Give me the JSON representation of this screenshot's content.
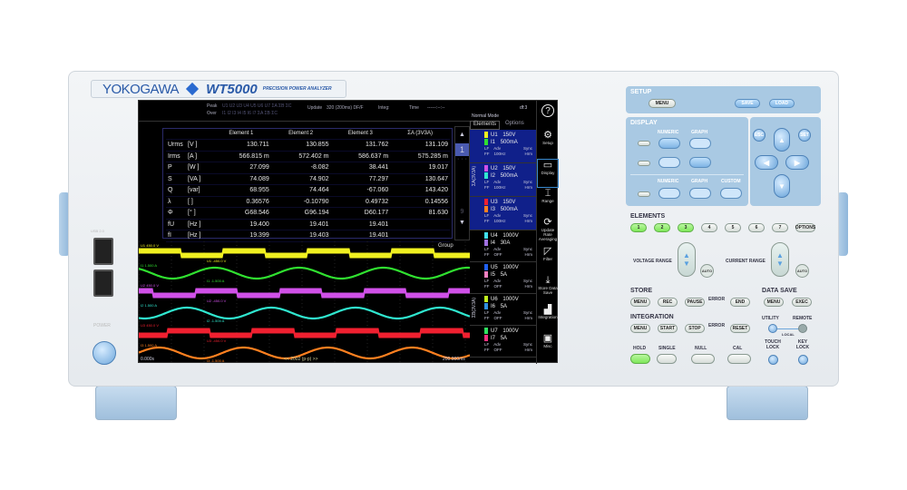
{
  "brand": {
    "maker": "YOKOGAWA",
    "model": "WT5000",
    "tagline": "PRECISION POWER ANALYZER"
  },
  "front": {
    "usb_label": "USB 2.0",
    "power_label": "POWER"
  },
  "status": {
    "peak_label": "Peak",
    "over_label": "Over",
    "peak_list": "U1 U2 U3 U4 U5 U6 U7 ΣA ΣB ΣC",
    "over_list": "I1 I2 I3 I4 I5 I6 I7 ΣA ΣB ΣC",
    "update_label": "Update",
    "update_value": "320 (200ms) DF/F",
    "integ_label": "Integ:",
    "time_label": "Time",
    "time_value": "------:--:--",
    "mode": "Normal Mode",
    "page_info": "df:3"
  },
  "table": {
    "headers": [
      "",
      "",
      "Element 1",
      "Element 2",
      "Element 3",
      "ΣA (3V3A)"
    ],
    "rows": [
      [
        "Urms",
        "[V  ]",
        "130.711",
        "130.855",
        "131.762",
        "131.109"
      ],
      [
        "Irms",
        "[A  ]",
        "566.815 m",
        "572.402 m",
        "586.637 m",
        "575.285 m"
      ],
      [
        "P",
        "[W  ]",
        "27.099",
        "-8.082",
        "38.441",
        "19.017"
      ],
      [
        "S",
        "[VA ]",
        "74.089",
        "74.902",
        "77.297",
        "130.647"
      ],
      [
        "Q",
        "[var]",
        "68.955",
        "74.464",
        "-67.060",
        "143.420"
      ],
      [
        "λ",
        "[   ]",
        "0.36576",
        "-0.10790",
        "0.49732",
        "0.14556"
      ],
      [
        "Φ",
        "[°  ]",
        "G68.546",
        "G96.194",
        "D60.177",
        "81.630"
      ],
      [
        "fU",
        "[Hz ]",
        "19.400",
        "19.401",
        "19.401",
        ""
      ],
      [
        "fI",
        "[Hz ]",
        "19.399",
        "19.403",
        "19.401",
        ""
      ]
    ]
  },
  "scroll": {
    "up": "▲",
    "page": "1",
    "last": "9",
    "down": "▼"
  },
  "panel_tabs": [
    "Elements",
    "Options"
  ],
  "wiring_labels": [
    "ΣA(3V3A)",
    "ΣB(3V3A)"
  ],
  "elements": [
    {
      "u": "U1",
      "ur": "150V",
      "i": "I1",
      "ir": "500mA",
      "uc": "#f0f020",
      "ic": "#30e030",
      "lf": "Adv",
      "ff": "100Hz",
      "sync": "Sync",
      "hrm": "Hrm",
      "sel": true
    },
    {
      "u": "U2",
      "ur": "150V",
      "i": "I2",
      "ir": "500mA",
      "uc": "#d050e8",
      "ic": "#30e8d0",
      "lf": "Adv",
      "ff": "100Hz",
      "sync": "Sync",
      "hrm": "Hrm",
      "sel": true
    },
    {
      "u": "U3",
      "ur": "150V",
      "i": "I3",
      "ir": "500mA",
      "uc": "#f02030",
      "ic": "#ff8020",
      "lf": "Adv",
      "ff": "100Hz",
      "sync": "Sync",
      "hrm": "Hrm",
      "sel": true
    },
    {
      "u": "U4",
      "ur": "1000V",
      "i": "I4",
      "ir": "30A",
      "uc": "#40e0f0",
      "ic": "#a070e0",
      "lf": "Adv",
      "ff": "OFF",
      "sync": "Sync",
      "hrm": "Hrm",
      "sel": false
    },
    {
      "u": "U5",
      "ur": "1000V",
      "i": "I5",
      "ir": "5A",
      "uc": "#2060f0",
      "ic": "#f080c0",
      "lf": "Adv",
      "ff": "OFF",
      "sync": "Sync",
      "hrm": "Hrm",
      "sel": false
    },
    {
      "u": "U6",
      "ur": "1000V",
      "i": "I6",
      "ir": "5A",
      "uc": "#c0f020",
      "ic": "#3090e0",
      "lf": "Adv",
      "ff": "OFF",
      "sync": "Sync",
      "hrm": "Hrm",
      "sel": false
    },
    {
      "u": "U7",
      "ur": "1000V",
      "i": "I7",
      "ir": "5A",
      "uc": "#30e060",
      "ic": "#f03080",
      "lf": "Adv",
      "ff": "OFF",
      "sync": "Sync",
      "hrm": "Hrm",
      "sel": false
    }
  ],
  "side_menu": [
    {
      "icon": "help-icon",
      "label": "?"
    },
    {
      "icon": "gear-icon",
      "label": "Setup"
    },
    {
      "icon": "display-icon",
      "label": "Display"
    },
    {
      "icon": "range-icon",
      "label": "Range"
    },
    {
      "icon": "refresh-icon",
      "label": "Update Rate Averaging"
    },
    {
      "icon": "filter-icon",
      "label": "Filter"
    },
    {
      "icon": "download-icon",
      "label": "Store Data Save"
    },
    {
      "icon": "chart-icon",
      "label": "Integration"
    },
    {
      "icon": "toolbox-icon",
      "label": "Misc"
    }
  ],
  "waves": {
    "group_label": "Group",
    "traces": [
      {
        "name": "U1",
        "type": "square",
        "color": "#f0f020",
        "top": "450.0 V",
        "bottom": "-450.0 V",
        "phase": 0
      },
      {
        "name": "I1",
        "type": "sine",
        "color": "#30e030",
        "top": "1.500 A",
        "bottom": "-1.500 A",
        "phase": 0.1
      },
      {
        "name": "U2",
        "type": "square",
        "color": "#d050e8",
        "top": "450.0 V",
        "bottom": "-450.0 V",
        "phase": 0.33
      },
      {
        "name": "I2",
        "type": "sine",
        "color": "#30e8d0",
        "top": "1.500 A",
        "bottom": "-1.500 A",
        "phase": 0.43
      },
      {
        "name": "U3",
        "type": "square",
        "color": "#f02030",
        "top": "450.0 V",
        "bottom": "-450.0 V",
        "phase": 0.66
      },
      {
        "name": "I3",
        "type": "sine",
        "color": "#ff8020",
        "top": "1.500 A",
        "bottom": "-1.500 A",
        "phase": 0.76
      }
    ],
    "t_start": "0.000s",
    "t_end": "200.000ms",
    "points_label": "<< 2002 (p-p) >>"
  },
  "keys": {
    "setup": "SETUP",
    "menu": "MENU",
    "save": "SAVE",
    "load": "LOAD",
    "display": "DISPLAY",
    "numeric": "NUMERIC",
    "graph": "GRAPH",
    "custom": "CUSTOM",
    "esc": "ESC",
    "set": "SET",
    "up": "▲",
    "down": "▼",
    "left": "◀",
    "right": "▶",
    "elements": "ELEMENTS",
    "element_buttons": [
      "1",
      "2",
      "3",
      "4",
      "5",
      "6",
      "7",
      "OPTIONS"
    ],
    "voltage_range": "VOLTAGE RANGE",
    "current_range": "CURRENT RANGE",
    "auto": "AUTO",
    "store": "STORE",
    "rec": "REC",
    "pause": "PAUSE",
    "error": "ERROR",
    "end": "END",
    "data_save": "DATA SAVE",
    "exec": "EXEC",
    "integration": "INTEGRATION",
    "start": "START",
    "stop": "STOP",
    "reset": "RESET",
    "utility": "UTILITY",
    "remote": "REMOTE",
    "local": "LOCAL",
    "hold": "HOLD",
    "single": "SINGLE",
    "null": "NULL",
    "cal": "CAL",
    "touch_lock": "TOUCH LOCK",
    "key_lock": "KEY LOCK"
  }
}
